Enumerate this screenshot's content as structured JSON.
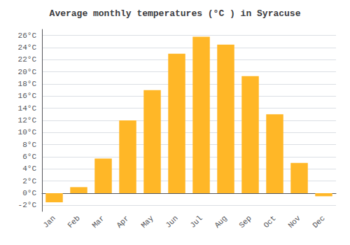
{
  "chart_data": {
    "type": "bar",
    "title": "Average monthly temperatures (°C ) in Syracuse",
    "categories": [
      "Jan",
      "Feb",
      "Mar",
      "Apr",
      "May",
      "Jun",
      "Jul",
      "Aug",
      "Sep",
      "Oct",
      "Nov",
      "Dec"
    ],
    "values": [
      -1.5,
      1.0,
      5.7,
      12.0,
      17.0,
      23.0,
      25.8,
      24.5,
      19.3,
      13.0,
      5.0,
      -0.5
    ],
    "color": "#FFB727",
    "ylim": [
      -3,
      27
    ],
    "yticks": [
      {
        "value": -2,
        "label": "-2°C"
      },
      {
        "value": 0,
        "label": "0°C"
      },
      {
        "value": 2,
        "label": "2°C"
      },
      {
        "value": 4,
        "label": "4°C"
      },
      {
        "value": 6,
        "label": "6°C"
      },
      {
        "value": 8,
        "label": "8°C"
      },
      {
        "value": 10,
        "label": "10°C"
      },
      {
        "value": 12,
        "label": "12°C"
      },
      {
        "value": 14,
        "label": "14°C"
      },
      {
        "value": 16,
        "label": "16°C"
      },
      {
        "value": 18,
        "label": "18°C"
      },
      {
        "value": 20,
        "label": "20°C"
      },
      {
        "value": 22,
        "label": "22°C"
      },
      {
        "value": 24,
        "label": "24°C"
      },
      {
        "value": 26,
        "label": "26°C"
      }
    ],
    "grid": true
  }
}
